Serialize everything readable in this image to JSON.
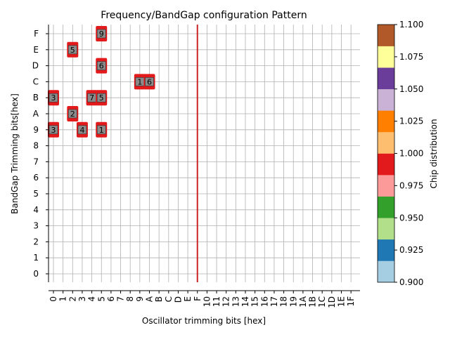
{
  "chart_data": {
    "type": "heatmap",
    "title": "Frequency/BandGap configuration Pattern",
    "xlabel": "Oscillator trimming bits [hex]",
    "ylabel": "BandGap Trimming bits[hex]",
    "x_ticks": [
      "0",
      "1",
      "2",
      "3",
      "4",
      "5",
      "6",
      "7",
      "8",
      "9",
      "A",
      "B",
      "C",
      "D",
      "E",
      "F",
      "10",
      "11",
      "12",
      "13",
      "14",
      "15",
      "16",
      "17",
      "18",
      "19",
      "1A",
      "1B",
      "1C",
      "1D",
      "1E",
      "1F"
    ],
    "y_ticks": [
      "0",
      "1",
      "2",
      "3",
      "4",
      "5",
      "6",
      "7",
      "8",
      "9",
      "A",
      "B",
      "C",
      "D",
      "E",
      "F"
    ],
    "grid": true,
    "reference_line": {
      "x": 15,
      "color": "#cc2222"
    },
    "points": [
      {
        "x": 5,
        "y": 15,
        "label": "9",
        "value": 1.0
      },
      {
        "x": 2,
        "y": 14,
        "label": "5",
        "value": 1.0
      },
      {
        "x": 5,
        "y": 13,
        "label": "6",
        "value": 1.0
      },
      {
        "x": 9,
        "y": 12,
        "label": "1",
        "value": 1.0
      },
      {
        "x": 10,
        "y": 12,
        "label": "6",
        "value": 1.0
      },
      {
        "x": 0,
        "y": 11,
        "label": "3",
        "value": 1.0
      },
      {
        "x": 4,
        "y": 11,
        "label": "7",
        "value": 1.0
      },
      {
        "x": 5,
        "y": 11,
        "label": "5",
        "value": 1.0
      },
      {
        "x": 2,
        "y": 10,
        "label": "2",
        "value": 1.0
      },
      {
        "x": 0,
        "y": 9,
        "label": "3",
        "value": 1.0
      },
      {
        "x": 3,
        "y": 9,
        "label": "4",
        "value": 1.0
      },
      {
        "x": 5,
        "y": 9,
        "label": "1",
        "value": 1.0
      }
    ],
    "colorbar": {
      "label": "Chip distribution",
      "range": [
        0.9,
        1.1
      ],
      "ticks": [
        "0.900",
        "0.925",
        "0.950",
        "0.975",
        "1.000",
        "1.025",
        "1.050",
        "1.075",
        "1.100"
      ],
      "colors": [
        "#a6cee3",
        "#1f78b4",
        "#b2df8a",
        "#33a02c",
        "#fb9a99",
        "#e31a1c",
        "#fdbf6f",
        "#ff7f00",
        "#cab2d6",
        "#6a3d9a",
        "#ffff99",
        "#b15928"
      ]
    }
  }
}
